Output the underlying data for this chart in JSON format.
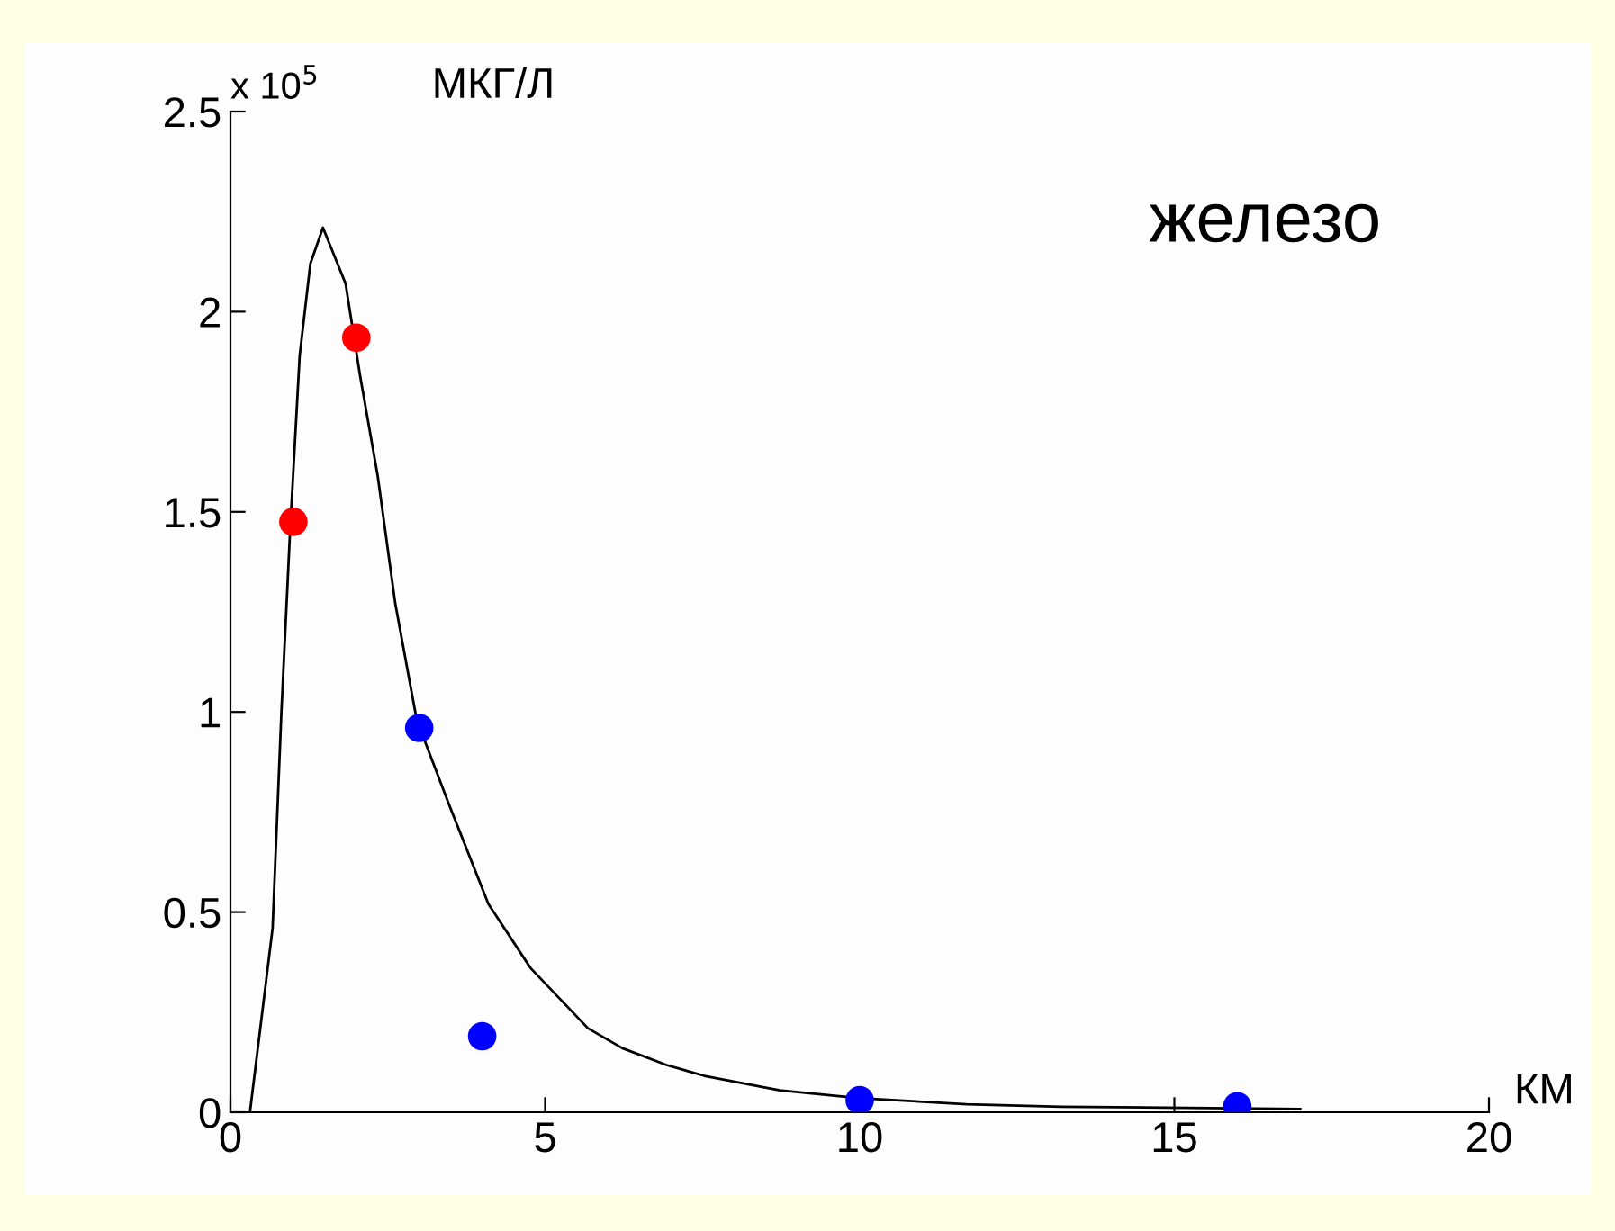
{
  "chart_data": {
    "type": "scatter",
    "title": "железо",
    "xlabel": "КМ",
    "ylabel": "МКГ/Л",
    "annotations": [
      "x 10$^{5}$"
    ],
    "series": [
      {
        "type": "line",
        "color": "#000000",
        "marker": "none",
        "x": [
          0.31,
          0.67,
          0.81,
          0.95,
          1.1,
          1.27,
          1.47,
          1.83,
          2.06,
          2.34,
          2.62,
          2.96,
          3.47,
          4.1,
          4.77,
          5.68,
          6.23,
          6.93,
          7.53,
          8.73,
          10,
          11.7,
          13.2,
          17.0
        ],
        "values": [
          0,
          0.46,
          1.0,
          1.46,
          1.89,
          2.12,
          2.21,
          2.07,
          1.84,
          1.59,
          1.27,
          0.98,
          0.77,
          0.52,
          0.36,
          0.21,
          0.16,
          0.118,
          0.091,
          0.055,
          0.035,
          0.02,
          0.014,
          0.008
        ]
      },
      {
        "color": "#ff0000",
        "marker": "circle",
        "x": [
          1,
          2
        ],
        "values": [
          1.475,
          1.935
        ]
      },
      {
        "color": "#0000ff",
        "marker": "circle",
        "x": [
          3,
          4,
          10,
          16
        ],
        "values": [
          0.96,
          0.19,
          0.03,
          0.015
        ]
      }
    ],
    "xlim": [
      0,
      20
    ],
    "xticks": [
      0,
      5,
      10,
      15,
      20
    ],
    "ylim": [
      0,
      2.5
    ],
    "yticks": [
      0,
      0.5,
      1,
      1.5,
      2,
      2.5
    ],
    "grid": false,
    "legend": false
  }
}
